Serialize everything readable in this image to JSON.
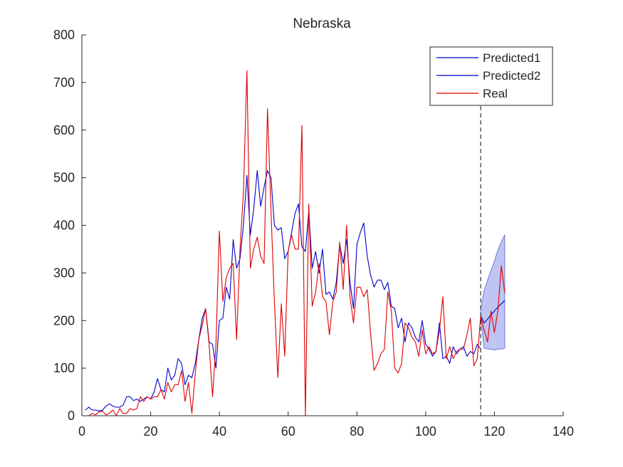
{
  "chart_data": {
    "type": "line",
    "title": "Nebraska",
    "xlabel": "",
    "ylabel": "",
    "xlim": [
      0,
      140
    ],
    "ylim": [
      0,
      800
    ],
    "xticks": [
      0,
      20,
      40,
      60,
      80,
      100,
      120,
      140
    ],
    "yticks": [
      0,
      100,
      200,
      300,
      400,
      500,
      600,
      700,
      800
    ],
    "grid": false,
    "legend_position": "top-right",
    "forecast_start_x": 116,
    "colors": {
      "predicted1": "#0000cc",
      "predicted2": "#0000cc",
      "real": "#dd0000",
      "band_fill": "#aab0ee",
      "band_edge": "#7078d8",
      "cutoff": "#333333"
    },
    "series": [
      {
        "name": "Predicted1",
        "x": [
          1,
          2,
          3,
          4,
          5,
          6,
          7,
          8,
          9,
          10,
          11,
          12,
          13,
          14,
          15,
          16,
          17,
          18,
          19,
          20,
          21,
          22,
          23,
          24,
          25,
          26,
          27,
          28,
          29,
          30,
          31,
          32,
          33,
          34,
          35,
          36,
          37,
          38,
          39,
          40,
          41,
          42,
          43,
          44,
          45,
          46,
          47,
          48,
          49,
          50,
          51,
          52,
          53,
          54,
          55,
          56,
          57,
          58,
          59,
          60,
          61,
          62,
          63,
          64,
          65,
          66,
          67,
          68,
          69,
          70,
          71,
          72,
          73,
          74,
          75,
          76,
          77,
          78,
          79,
          80,
          81,
          82,
          83,
          84,
          85,
          86,
          87,
          88,
          89,
          90,
          91,
          92,
          93,
          94,
          95,
          96,
          97,
          98,
          99,
          100,
          101,
          102,
          103,
          104,
          105,
          106,
          107,
          108,
          109,
          110,
          111,
          112,
          113,
          114,
          115,
          116
        ],
        "y": [
          12,
          18,
          12,
          12,
          10,
          12,
          20,
          25,
          20,
          18,
          18,
          22,
          40,
          40,
          32,
          35,
          30,
          35,
          40,
          35,
          50,
          78,
          55,
          50,
          100,
          75,
          85,
          120,
          110,
          65,
          85,
          80,
          110,
          160,
          205,
          225,
          155,
          150,
          100,
          200,
          205,
          270,
          245,
          370,
          310,
          330,
          400,
          505,
          380,
          435,
          515,
          440,
          480,
          515,
          500,
          400,
          390,
          395,
          330,
          345,
          385,
          425,
          445,
          355,
          345,
          430,
          310,
          345,
          300,
          350,
          255,
          260,
          245,
          280,
          360,
          320,
          370,
          280,
          225,
          360,
          385,
          405,
          335,
          295,
          270,
          285,
          285,
          265,
          280,
          230,
          225,
          185,
          205,
          155,
          195,
          185,
          165,
          155,
          200,
          150,
          140,
          125,
          135,
          195,
          120,
          125,
          110,
          145,
          130,
          140,
          145,
          125,
          135,
          130,
          150,
          140
        ]
      },
      {
        "name": "Predicted2",
        "x": [
          116,
          117,
          118,
          119,
          120,
          121,
          122,
          123
        ],
        "y": [
          210,
          195,
          203,
          212,
          220,
          228,
          235,
          242
        ]
      },
      {
        "name": "Real",
        "x": [
          1,
          2,
          3,
          4,
          5,
          6,
          7,
          8,
          9,
          10,
          11,
          12,
          13,
          14,
          15,
          16,
          17,
          18,
          19,
          20,
          21,
          22,
          23,
          24,
          25,
          26,
          27,
          28,
          29,
          30,
          31,
          32,
          33,
          34,
          35,
          36,
          37,
          38,
          39,
          40,
          41,
          42,
          43,
          44,
          45,
          46,
          47,
          48,
          49,
          50,
          51,
          52,
          53,
          54,
          55,
          56,
          57,
          58,
          59,
          60,
          61,
          62,
          63,
          64,
          65,
          66,
          67,
          68,
          69,
          70,
          71,
          72,
          73,
          74,
          75,
          76,
          77,
          78,
          79,
          80,
          81,
          82,
          83,
          84,
          85,
          86,
          87,
          88,
          89,
          90,
          91,
          92,
          93,
          94,
          95,
          96,
          97,
          98,
          99,
          100,
          101,
          102,
          103,
          104,
          105,
          106,
          107,
          108,
          109,
          110,
          111,
          112,
          113,
          114,
          115,
          116,
          117,
          118,
          119,
          120,
          121,
          122,
          123
        ],
        "y": [
          0,
          0,
          5,
          2,
          8,
          10,
          2,
          5,
          12,
          0,
          15,
          5,
          5,
          15,
          12,
          15,
          40,
          30,
          40,
          35,
          40,
          40,
          55,
          35,
          70,
          50,
          65,
          65,
          95,
          30,
          70,
          5,
          90,
          160,
          190,
          225,
          150,
          40,
          150,
          388,
          240,
          290,
          310,
          320,
          160,
          350,
          470,
          725,
          310,
          350,
          375,
          335,
          320,
          645,
          430,
          240,
          80,
          235,
          125,
          345,
          380,
          350,
          350,
          610,
          0,
          445,
          230,
          260,
          320,
          250,
          240,
          170,
          240,
          260,
          365,
          265,
          400,
          250,
          195,
          270,
          270,
          250,
          265,
          170,
          95,
          110,
          130,
          140,
          260,
          220,
          100,
          90,
          110,
          195,
          185,
          165,
          155,
          125,
          180,
          130,
          145,
          130,
          135,
          180,
          250,
          120,
          145,
          120,
          135,
          140,
          140,
          170,
          205,
          105,
          120,
          210,
          180,
          155,
          220,
          175,
          220,
          315,
          258
        ]
      }
    ],
    "band": {
      "x": [
        116,
        117,
        118,
        119,
        120,
        121,
        122,
        123
      ],
      "upper": [
        225,
        262,
        285,
        305,
        325,
        348,
        365,
        380
      ],
      "lower": [
        205,
        142,
        140,
        140,
        138,
        140,
        140,
        142
      ]
    }
  }
}
